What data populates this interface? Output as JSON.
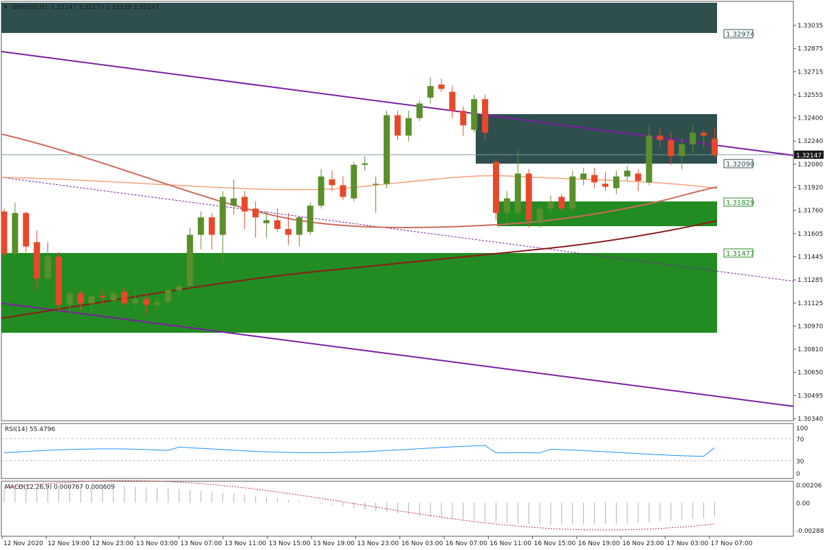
{
  "header": {
    "symbol_timeframe": "GBPUSD,H1",
    "ohlc": "1.32147 1.32173 1.32138 1.32147"
  },
  "colors": {
    "bull": "#5a8f2b",
    "bear": "#e8482a",
    "wick": "#2b2b2b",
    "channel": "#7b1fa2",
    "ma_fast": "#f4a27a",
    "ma_mid": "#cd6b5c",
    "ma_slow": "#8b1a1a",
    "zone_dark": "#2f4f4f",
    "zone_green": "#228b22",
    "rsi_line": "#1e90ff",
    "macd_signal": "#c03030",
    "macd_hist": "#b0b0b0"
  },
  "price_axis": {
    "ticks": [
      "1.33035",
      "1.32875",
      "1.32715",
      "1.32555",
      "1.32400",
      "1.32240",
      "1.32080",
      "1.31920",
      "1.31760",
      "1.31605",
      "1.31445",
      "1.31285",
      "1.31125",
      "1.30970",
      "1.30810",
      "1.30650",
      "1.30495",
      "1.30340"
    ],
    "current_price_label": "1.32147"
  },
  "price_labels": {
    "l1": "1.32974",
    "l2": "1.32090",
    "l3": "1.31829",
    "l4": "1.31477"
  },
  "time_axis": {
    "labels": [
      "12 Nov 2020",
      "12 Nov 19:00",
      "12 Nov 23:00",
      "13 Nov 03:00",
      "13 Nov 07:00",
      "13 Nov 11:00",
      "13 Nov 15:00",
      "13 Nov 19:00",
      "13 Nov 23:00",
      "16 Nov 03:00",
      "16 Nov 07:00",
      "16 Nov 11:00",
      "16 Nov 15:00",
      "16 Nov 19:00",
      "16 Nov 23:00",
      "17 Nov 03:00",
      "17 Nov 07:00"
    ]
  },
  "rsi": {
    "label": "RSI(14) 55.4796",
    "levels": [
      "70",
      "30",
      "0"
    ],
    "top_label": "100"
  },
  "macd": {
    "label": "MACD(12,26,9) 0.000767 0.000609",
    "ticks": [
      "0.00206",
      "0.00",
      "-0.00288"
    ]
  },
  "chart_data": {
    "type": "candlestick",
    "symbol": "GBPUSD",
    "timeframe": "H1",
    "ylim": [
      1.303,
      1.332
    ],
    "candles": [
      {
        "o": 1.3176,
        "h": 1.3178,
        "l": 1.3145,
        "c": 1.3147
      },
      {
        "o": 1.3147,
        "h": 1.3182,
        "l": 1.3144,
        "c": 1.3175
      },
      {
        "o": 1.3175,
        "h": 1.3176,
        "l": 1.3148,
        "c": 1.3152
      },
      {
        "o": 1.3155,
        "h": 1.3163,
        "l": 1.3122,
        "c": 1.313
      },
      {
        "o": 1.313,
        "h": 1.3155,
        "l": 1.3128,
        "c": 1.3145
      },
      {
        "o": 1.3145,
        "h": 1.3148,
        "l": 1.3108,
        "c": 1.3112
      },
      {
        "o": 1.3112,
        "h": 1.3122,
        "l": 1.3105,
        "c": 1.312
      },
      {
        "o": 1.312,
        "h": 1.3122,
        "l": 1.3108,
        "c": 1.3113
      },
      {
        "o": 1.3113,
        "h": 1.312,
        "l": 1.3106,
        "c": 1.3118
      },
      {
        "o": 1.3118,
        "h": 1.3122,
        "l": 1.3112,
        "c": 1.3117
      },
      {
        "o": 1.3115,
        "h": 1.3123,
        "l": 1.311,
        "c": 1.312
      },
      {
        "o": 1.3121,
        "h": 1.3124,
        "l": 1.3111,
        "c": 1.3113
      },
      {
        "o": 1.3113,
        "h": 1.3122,
        "l": 1.3109,
        "c": 1.3116
      },
      {
        "o": 1.3116,
        "h": 1.312,
        "l": 1.3105,
        "c": 1.3112
      },
      {
        "o": 1.3112,
        "h": 1.3117,
        "l": 1.3109,
        "c": 1.3114
      },
      {
        "o": 1.3114,
        "h": 1.3124,
        "l": 1.3112,
        "c": 1.3122
      },
      {
        "o": 1.3122,
        "h": 1.3128,
        "l": 1.3118,
        "c": 1.3125
      },
      {
        "o": 1.3125,
        "h": 1.3165,
        "l": 1.3123,
        "c": 1.316
      },
      {
        "o": 1.316,
        "h": 1.3176,
        "l": 1.315,
        "c": 1.3172
      },
      {
        "o": 1.3172,
        "h": 1.3175,
        "l": 1.315,
        "c": 1.316
      },
      {
        "o": 1.316,
        "h": 1.319,
        "l": 1.314,
        "c": 1.3186
      },
      {
        "o": 1.318,
        "h": 1.3198,
        "l": 1.3174,
        "c": 1.3185
      },
      {
        "o": 1.3186,
        "h": 1.319,
        "l": 1.3164,
        "c": 1.3176
      },
      {
        "o": 1.3178,
        "h": 1.3183,
        "l": 1.3158,
        "c": 1.3172
      },
      {
        "o": 1.3168,
        "h": 1.3176,
        "l": 1.3158,
        "c": 1.317
      },
      {
        "o": 1.317,
        "h": 1.3178,
        "l": 1.3162,
        "c": 1.3164
      },
      {
        "o": 1.3164,
        "h": 1.3175,
        "l": 1.3153,
        "c": 1.316
      },
      {
        "o": 1.316,
        "h": 1.3173,
        "l": 1.3152,
        "c": 1.3172
      },
      {
        "o": 1.3162,
        "h": 1.3182,
        "l": 1.316,
        "c": 1.318
      },
      {
        "o": 1.318,
        "h": 1.3205,
        "l": 1.3178,
        "c": 1.32
      },
      {
        "o": 1.3198,
        "h": 1.3204,
        "l": 1.319,
        "c": 1.3194
      },
      {
        "o": 1.3194,
        "h": 1.32,
        "l": 1.3184,
        "c": 1.3186
      },
      {
        "o": 1.3185,
        "h": 1.321,
        "l": 1.3183,
        "c": 1.3208
      },
      {
        "o": 1.3208,
        "h": 1.3214,
        "l": 1.3204,
        "c": 1.3209
      },
      {
        "o": 1.3195,
        "h": 1.32,
        "l": 1.3175,
        "c": 1.3195
      },
      {
        "o": 1.3195,
        "h": 1.3245,
        "l": 1.3192,
        "c": 1.3242
      },
      {
        "o": 1.3242,
        "h": 1.3245,
        "l": 1.3225,
        "c": 1.3228
      },
      {
        "o": 1.3228,
        "h": 1.3245,
        "l": 1.3224,
        "c": 1.324
      },
      {
        "o": 1.324,
        "h": 1.3252,
        "l": 1.3238,
        "c": 1.325
      },
      {
        "o": 1.3254,
        "h": 1.3268,
        "l": 1.325,
        "c": 1.3262
      },
      {
        "o": 1.3263,
        "h": 1.3267,
        "l": 1.3258,
        "c": 1.326
      },
      {
        "o": 1.3258,
        "h": 1.3262,
        "l": 1.324,
        "c": 1.3245
      },
      {
        "o": 1.3245,
        "h": 1.3248,
        "l": 1.3228,
        "c": 1.3235
      },
      {
        "o": 1.3232,
        "h": 1.3256,
        "l": 1.323,
        "c": 1.3253
      },
      {
        "o": 1.3253,
        "h": 1.3256,
        "l": 1.3225,
        "c": 1.323
      },
      {
        "o": 1.321,
        "h": 1.3212,
        "l": 1.317,
        "c": 1.3175
      },
      {
        "o": 1.3175,
        "h": 1.319,
        "l": 1.3168,
        "c": 1.3185
      },
      {
        "o": 1.3175,
        "h": 1.3218,
        "l": 1.3173,
        "c": 1.3202
      },
      {
        "o": 1.3202,
        "h": 1.3205,
        "l": 1.3165,
        "c": 1.317
      },
      {
        "o": 1.3168,
        "h": 1.318,
        "l": 1.3165,
        "c": 1.3178
      },
      {
        "o": 1.3178,
        "h": 1.3187,
        "l": 1.3174,
        "c": 1.3183
      },
      {
        "o": 1.3186,
        "h": 1.3188,
        "l": 1.3176,
        "c": 1.3178
      },
      {
        "o": 1.3178,
        "h": 1.3204,
        "l": 1.3176,
        "c": 1.32
      },
      {
        "o": 1.3198,
        "h": 1.3206,
        "l": 1.3194,
        "c": 1.3202
      },
      {
        "o": 1.3201,
        "h": 1.3206,
        "l": 1.3192,
        "c": 1.3196
      },
      {
        "o": 1.3195,
        "h": 1.3203,
        "l": 1.319,
        "c": 1.3193
      },
      {
        "o": 1.3192,
        "h": 1.3204,
        "l": 1.3188,
        "c": 1.32
      },
      {
        "o": 1.32,
        "h": 1.3207,
        "l": 1.3197,
        "c": 1.3204
      },
      {
        "o": 1.3202,
        "h": 1.3205,
        "l": 1.319,
        "c": 1.3197
      },
      {
        "o": 1.3196,
        "h": 1.3235,
        "l": 1.3194,
        "c": 1.3228
      },
      {
        "o": 1.3228,
        "h": 1.3233,
        "l": 1.322,
        "c": 1.3225
      },
      {
        "o": 1.3225,
        "h": 1.323,
        "l": 1.3208,
        "c": 1.3214
      },
      {
        "o": 1.3214,
        "h": 1.3226,
        "l": 1.3205,
        "c": 1.3222
      },
      {
        "o": 1.3222,
        "h": 1.3235,
        "l": 1.3216,
        "c": 1.323
      },
      {
        "o": 1.323,
        "h": 1.3232,
        "l": 1.322,
        "c": 1.3228
      },
      {
        "o": 1.3226,
        "h": 1.3233,
        "l": 1.3213,
        "c": 1.3215
      }
    ],
    "rsi": {
      "range": [
        0,
        100
      ],
      "levels": [
        70,
        30
      ],
      "value": 55.4796
    },
    "macd": {
      "main": 0.000767,
      "signal": 0.000609
    }
  }
}
